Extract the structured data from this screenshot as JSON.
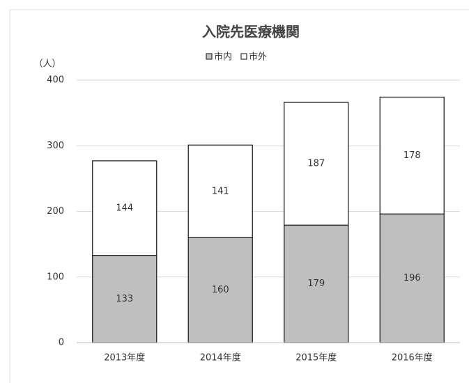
{
  "chart_data": {
    "type": "stacked_bar",
    "title": "入院先医療機関",
    "ylabel": "（人）",
    "categories": [
      "2013年度",
      "2014年度",
      "2015年度",
      "2016年度"
    ],
    "series": [
      {
        "name": "市内",
        "color": "#bfbfbf",
        "values": [
          133,
          160,
          179,
          196
        ]
      },
      {
        "name": "市外",
        "color": "#ffffff",
        "values": [
          144,
          141,
          187,
          178
        ]
      }
    ],
    "ylim": [
      0,
      400
    ],
    "yticks": [
      0,
      100,
      200,
      300,
      400
    ],
    "grid": true,
    "legend": "top"
  }
}
